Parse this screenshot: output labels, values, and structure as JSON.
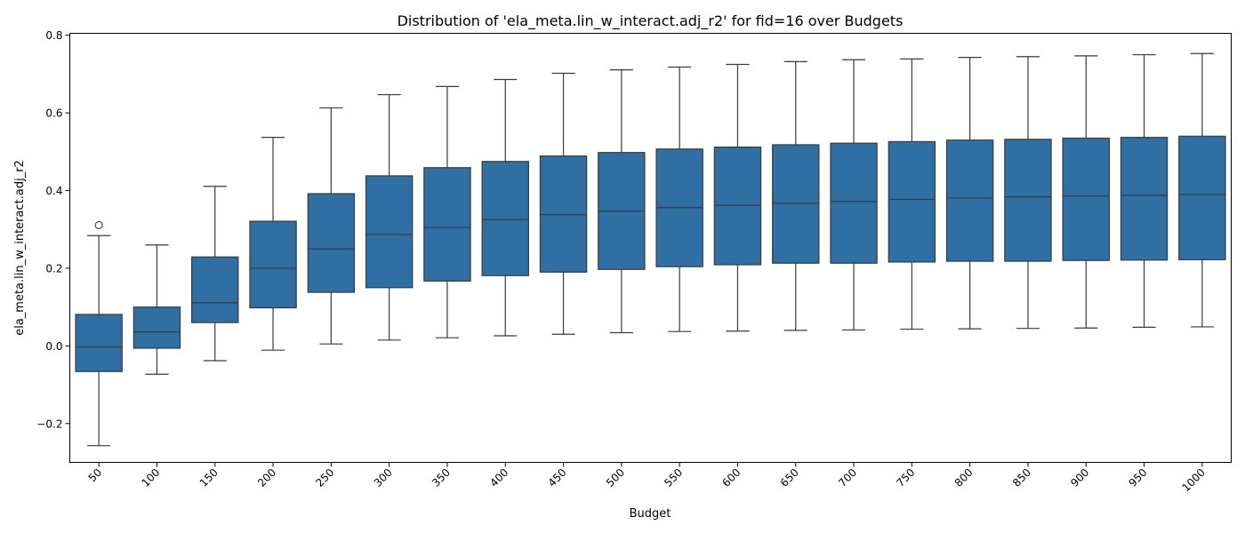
{
  "chart_data": {
    "type": "box",
    "title": "Distribution of 'ela_meta.lin_w_interact.adj_r2' for fid=16 over Budgets",
    "xlabel": "Budget",
    "ylabel": "ela_meta.lin_w_interact.adj_r2",
    "ylim": [
      -0.3,
      0.805
    ],
    "yticks": [
      -0.2,
      0.0,
      0.2,
      0.4,
      0.6,
      0.8
    ],
    "ytick_labels": [
      "−0.2",
      "0.0",
      "0.2",
      "0.4",
      "0.6",
      "0.8"
    ],
    "categories": [
      "50",
      "100",
      "150",
      "200",
      "250",
      "300",
      "350",
      "400",
      "450",
      "500",
      "550",
      "600",
      "650",
      "700",
      "750",
      "800",
      "850",
      "900",
      "950",
      "1000"
    ],
    "box_color": "#2f6fa3",
    "grid": false,
    "boxes": [
      {
        "whislo": -0.257,
        "q1": -0.066,
        "med": -0.003,
        "q3": 0.081,
        "whishi": 0.284,
        "fliers": [
          0.311
        ]
      },
      {
        "whislo": -0.073,
        "q1": -0.006,
        "med": 0.036,
        "q3": 0.1,
        "whishi": 0.26,
        "fliers": []
      },
      {
        "whislo": -0.038,
        "q1": 0.06,
        "med": 0.111,
        "q3": 0.229,
        "whishi": 0.411,
        "fliers": []
      },
      {
        "whislo": -0.011,
        "q1": 0.098,
        "med": 0.2,
        "q3": 0.321,
        "whishi": 0.537,
        "fliers": []
      },
      {
        "whislo": 0.005,
        "q1": 0.138,
        "med": 0.25,
        "q3": 0.392,
        "whishi": 0.613,
        "fliers": []
      },
      {
        "whislo": 0.015,
        "q1": 0.15,
        "med": 0.287,
        "q3": 0.438,
        "whishi": 0.647,
        "fliers": []
      },
      {
        "whislo": 0.021,
        "q1": 0.167,
        "med": 0.305,
        "q3": 0.459,
        "whishi": 0.668,
        "fliers": []
      },
      {
        "whislo": 0.026,
        "q1": 0.181,
        "med": 0.325,
        "q3": 0.475,
        "whishi": 0.686,
        "fliers": []
      },
      {
        "whislo": 0.03,
        "q1": 0.19,
        "med": 0.338,
        "q3": 0.489,
        "whishi": 0.702,
        "fliers": []
      },
      {
        "whislo": 0.034,
        "q1": 0.197,
        "med": 0.347,
        "q3": 0.498,
        "whishi": 0.711,
        "fliers": []
      },
      {
        "whislo": 0.037,
        "q1": 0.204,
        "med": 0.356,
        "q3": 0.507,
        "whishi": 0.718,
        "fliers": []
      },
      {
        "whislo": 0.038,
        "q1": 0.209,
        "med": 0.362,
        "q3": 0.512,
        "whishi": 0.725,
        "fliers": []
      },
      {
        "whislo": 0.04,
        "q1": 0.213,
        "med": 0.367,
        "q3": 0.518,
        "whishi": 0.732,
        "fliers": []
      },
      {
        "whislo": 0.041,
        "q1": 0.213,
        "med": 0.372,
        "q3": 0.522,
        "whishi": 0.737,
        "fliers": []
      },
      {
        "whislo": 0.043,
        "q1": 0.216,
        "med": 0.377,
        "q3": 0.526,
        "whishi": 0.739,
        "fliers": []
      },
      {
        "whislo": 0.044,
        "q1": 0.218,
        "med": 0.381,
        "q3": 0.53,
        "whishi": 0.743,
        "fliers": []
      },
      {
        "whislo": 0.045,
        "q1": 0.218,
        "med": 0.384,
        "q3": 0.532,
        "whishi": 0.745,
        "fliers": []
      },
      {
        "whislo": 0.046,
        "q1": 0.22,
        "med": 0.386,
        "q3": 0.535,
        "whishi": 0.747,
        "fliers": []
      },
      {
        "whislo": 0.048,
        "q1": 0.221,
        "med": 0.388,
        "q3": 0.537,
        "whishi": 0.75,
        "fliers": []
      },
      {
        "whislo": 0.049,
        "q1": 0.222,
        "med": 0.39,
        "q3": 0.54,
        "whishi": 0.753,
        "fliers": []
      }
    ]
  }
}
